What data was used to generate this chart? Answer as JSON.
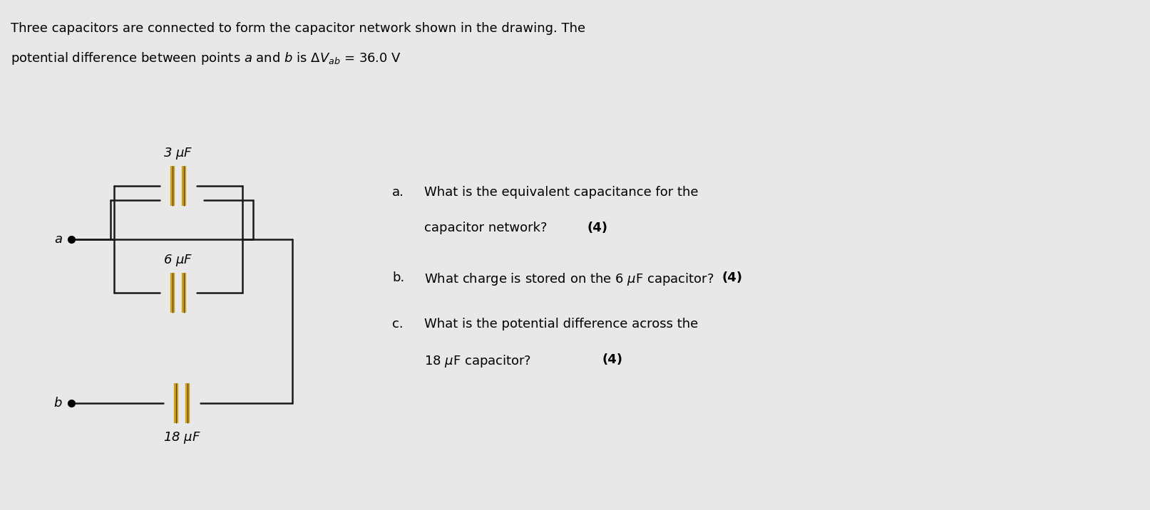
{
  "bg_color": "#e8e8e8",
  "title_line1": "Three capacitors are connected to form the capacitor network shown in the drawing. The",
  "title_line2": "potential difference between points $a$ and $b$ is $\\Delta V_{ab}$ = 36.0 V",
  "cap_color": "#c8a020",
  "cap_line_color": "#1a1a1a",
  "wire_color": "#1a1a1a",
  "label_3uF": "3 $\\mu$F",
  "label_6uF": "6 $\\mu$F",
  "label_18uF": "18 $\\mu$F",
  "label_a": "$a$",
  "label_b": "$b$",
  "questions": [
    {
      "letter": "a.",
      "text": "What is the equivalent capacitance for the",
      "text2": "capacitor network? ",
      "bold": "(4)"
    },
    {
      "letter": "b.",
      "text": "What charge is stored on the 6 $\\mu$F capacitor? ",
      "bold": "(4)"
    },
    {
      "letter": "c.",
      "text": "What is the potential difference across the",
      "text2": "18 $\\mu$F capacitor? ",
      "bold": "(4)"
    }
  ]
}
